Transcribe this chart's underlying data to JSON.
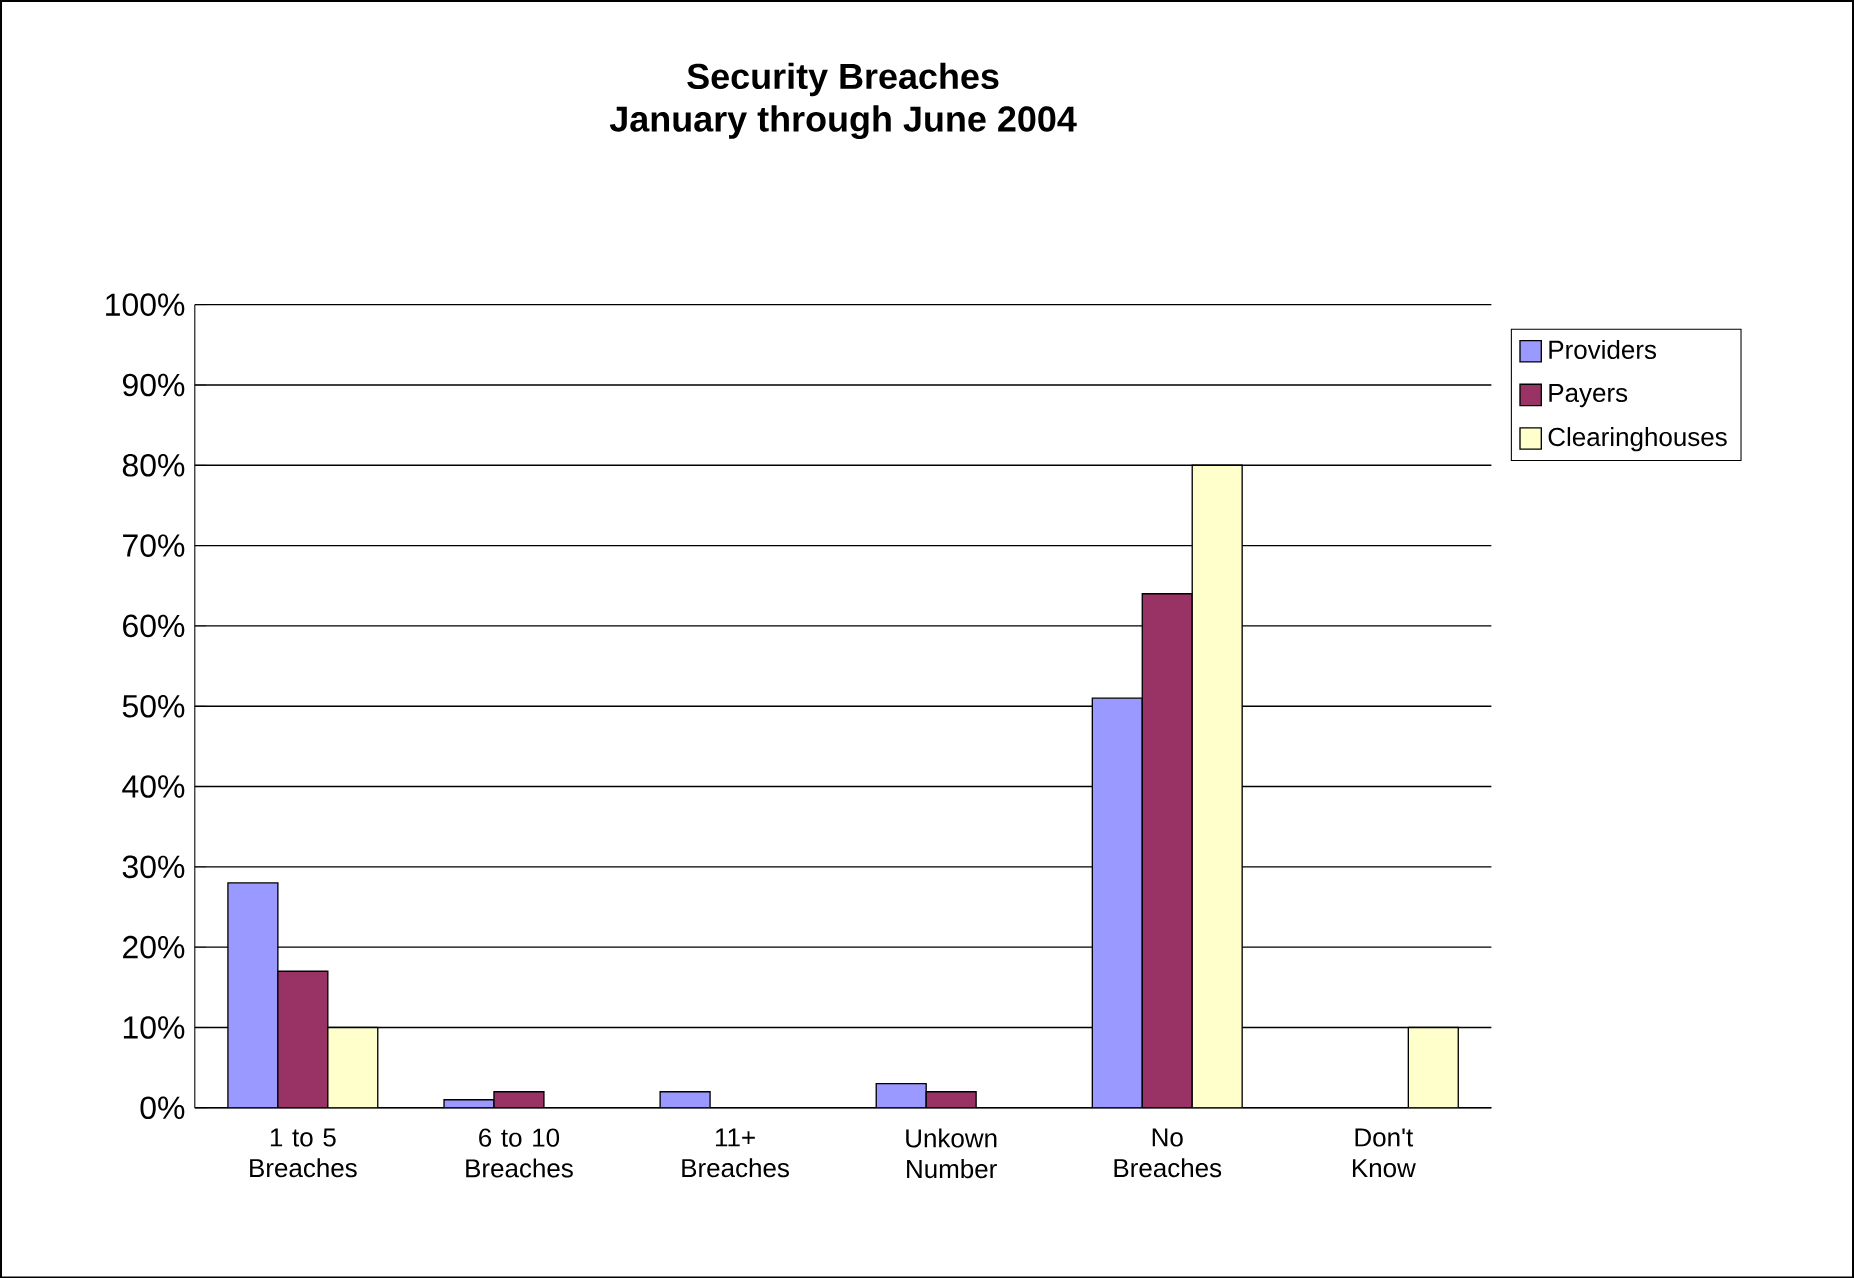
{
  "chart_data": {
    "type": "bar",
    "title": "Security Breaches",
    "subtitle": "January through June 2004",
    "categories": [
      "1 to 5 Breaches",
      "6 to 10 Breaches",
      "11+ Breaches",
      "Unkown Number",
      "No Breaches",
      "Don't Know"
    ],
    "series": [
      {
        "name": "Providers",
        "color": "#9999ff",
        "values": [
          28,
          1,
          2,
          3,
          51,
          null
        ]
      },
      {
        "name": "Payers",
        "color": "#993366",
        "values": [
          17,
          2,
          null,
          2,
          64,
          null
        ]
      },
      {
        "name": "Clearinghouses",
        "color": "#ffffcc",
        "values": [
          10,
          null,
          null,
          null,
          80,
          10
        ]
      }
    ],
    "ylim": [
      0,
      100
    ],
    "yticks": [
      {
        "value": 0,
        "label": "0%"
      },
      {
        "value": 10,
        "label": "10%"
      },
      {
        "value": 20,
        "label": "20%"
      },
      {
        "value": 30,
        "label": "30%"
      },
      {
        "value": 40,
        "label": "40%"
      },
      {
        "value": 50,
        "label": "50%"
      },
      {
        "value": 60,
        "label": "60%"
      },
      {
        "value": 70,
        "label": "70%"
      },
      {
        "value": 80,
        "label": "80%"
      },
      {
        "value": 90,
        "label": "90%"
      },
      {
        "value": 100,
        "label": "100%"
      }
    ],
    "grid": "y",
    "legend": "right"
  }
}
